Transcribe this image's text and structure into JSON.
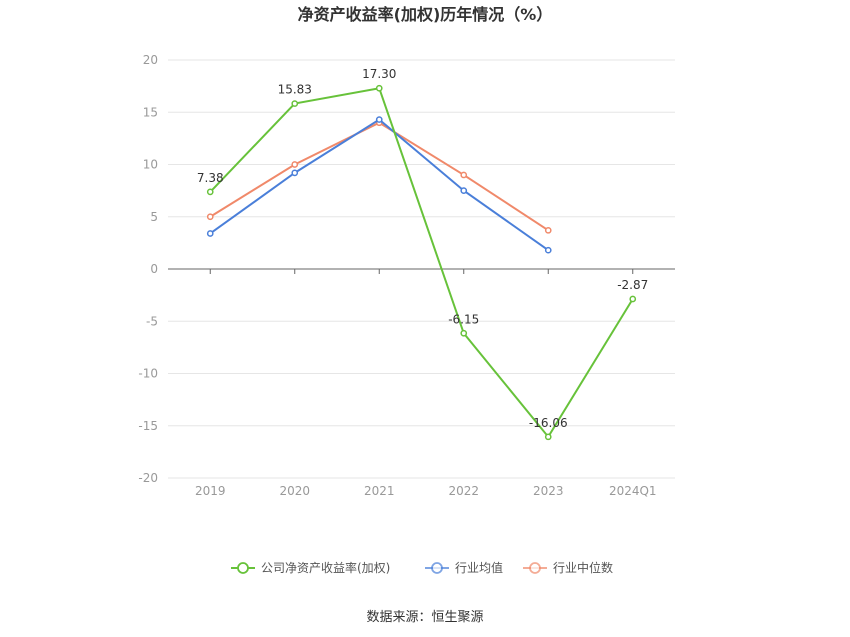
{
  "chart_data": {
    "type": "line",
    "title": "净资产收益率(加权)历年情况（%）",
    "categories": [
      "2019",
      "2020",
      "2021",
      "2022",
      "2023",
      "2024Q1"
    ],
    "ylim": [
      -20,
      20
    ],
    "yticks": [
      20,
      15,
      10,
      5,
      0,
      -5,
      -10,
      -15,
      -20
    ],
    "grid": true,
    "legend_position": "bottom",
    "series": [
      {
        "name": "公司净资产收益率(加权)",
        "color": "#67c23a",
        "values": [
          7.38,
          15.83,
          17.3,
          -6.15,
          -16.06,
          -2.87
        ],
        "labels": [
          "7.38",
          "15.83",
          "17.30",
          "-6.15",
          "-16.06",
          "-2.87"
        ]
      },
      {
        "name": "行业均值",
        "color": "#4a7fd9",
        "values": [
          3.4,
          9.2,
          14.3,
          7.5,
          1.8,
          null
        ]
      },
      {
        "name": "行业中位数",
        "color": "#f0896a",
        "values": [
          5.0,
          10.0,
          14.0,
          9.0,
          3.7,
          null
        ]
      }
    ]
  },
  "source": "数据来源：恒生聚源"
}
